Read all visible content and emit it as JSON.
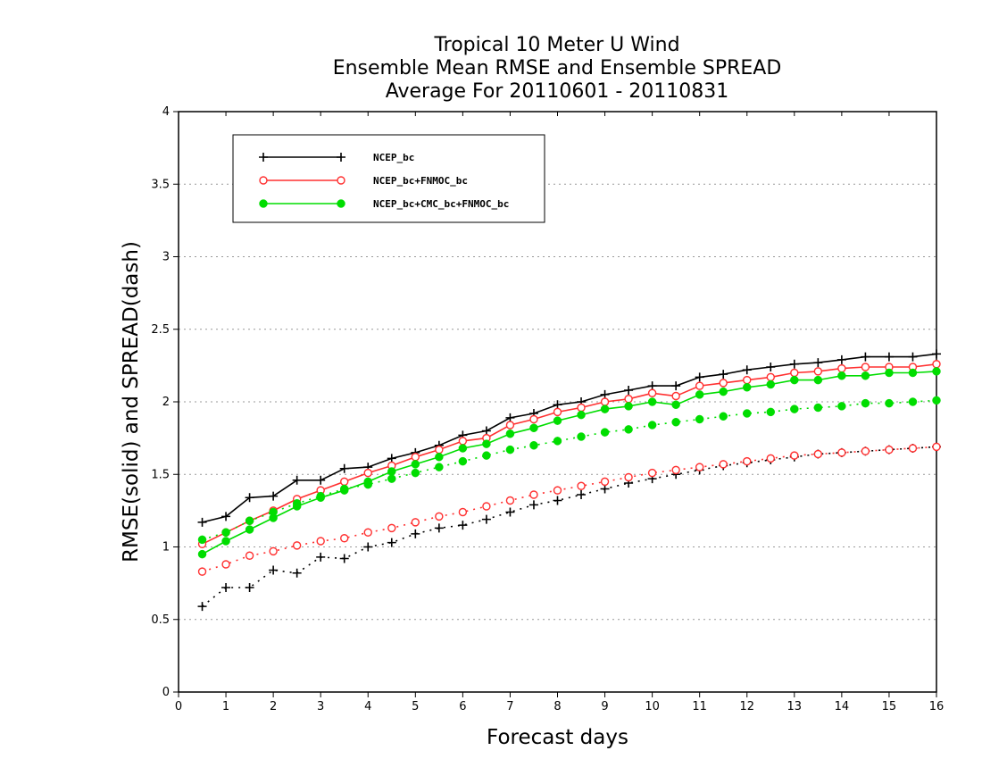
{
  "chart_data": {
    "type": "line",
    "title": [
      "Tropical 10 Meter U Wind",
      "Ensemble Mean RMSE and Ensemble SPREAD",
      "Average For 20110601 - 20110831"
    ],
    "xlabel": "Forecast days",
    "ylabel": "RMSE(solid) and SPREAD(dash)",
    "xlim": [
      0,
      16
    ],
    "ylim": [
      0,
      4
    ],
    "xticks": [
      0,
      1,
      2,
      3,
      4,
      5,
      6,
      7,
      8,
      9,
      10,
      11,
      12,
      13,
      14,
      15,
      16
    ],
    "yticks": [
      0,
      0.5,
      1,
      1.5,
      2,
      2.5,
      3,
      3.5,
      4
    ],
    "ytick_labels": [
      "0",
      "0.5",
      "1",
      "1.5",
      "2",
      "2.5",
      "3",
      "3.5",
      "4"
    ],
    "grid": "horizontal dotted",
    "legend_placement": "top-left",
    "x": [
      0.5,
      1,
      1.5,
      2,
      2.5,
      3,
      3.5,
      4,
      4.5,
      5,
      5.5,
      6,
      6.5,
      7,
      7.5,
      8,
      8.5,
      9,
      9.5,
      10,
      10.5,
      11,
      11.5,
      12,
      12.5,
      13,
      13.5,
      14,
      14.5,
      15,
      15.5,
      16
    ],
    "series": [
      {
        "name": "NCEP_bc",
        "color": "#000000",
        "marker": "plus",
        "rmse": [
          1.17,
          1.21,
          1.34,
          1.35,
          1.46,
          1.46,
          1.54,
          1.55,
          1.61,
          1.65,
          1.7,
          1.77,
          1.8,
          1.89,
          1.92,
          1.98,
          2.0,
          2.05,
          2.08,
          2.11,
          2.11,
          2.17,
          2.19,
          2.22,
          2.24,
          2.26,
          2.27,
          2.29,
          2.31,
          2.31,
          2.31,
          2.33
        ],
        "spread": [
          0.59,
          0.72,
          0.72,
          0.84,
          0.82,
          0.93,
          0.92,
          1.0,
          1.03,
          1.09,
          1.13,
          1.15,
          1.19,
          1.24,
          1.29,
          1.32,
          1.36,
          1.4,
          1.44,
          1.47,
          1.5,
          1.53,
          1.56,
          1.58,
          1.6,
          1.62,
          1.64,
          1.65,
          1.66,
          1.67,
          1.68,
          1.69
        ]
      },
      {
        "name": "NCEP_bc+FNMOC_bc",
        "color": "#ff3030",
        "marker": "open-circle",
        "rmse": [
          1.02,
          1.1,
          1.18,
          1.25,
          1.33,
          1.39,
          1.45,
          1.51,
          1.56,
          1.62,
          1.67,
          1.73,
          1.75,
          1.84,
          1.88,
          1.93,
          1.96,
          2.0,
          2.02,
          2.06,
          2.04,
          2.11,
          2.13,
          2.15,
          2.17,
          2.2,
          2.21,
          2.23,
          2.24,
          2.24,
          2.24,
          2.26
        ],
        "spread": [
          0.83,
          0.88,
          0.94,
          0.97,
          1.01,
          1.04,
          1.06,
          1.1,
          1.13,
          1.17,
          1.21,
          1.24,
          1.28,
          1.32,
          1.36,
          1.39,
          1.42,
          1.45,
          1.48,
          1.51,
          1.53,
          1.55,
          1.57,
          1.59,
          1.61,
          1.63,
          1.64,
          1.65,
          1.66,
          1.67,
          1.68,
          1.69
        ]
      },
      {
        "name": "NCEP_bc+CMC_bc+FNMOC_bc",
        "color": "#00dd00",
        "marker": "filled-circle",
        "rmse": [
          0.95,
          1.04,
          1.12,
          1.2,
          1.28,
          1.34,
          1.39,
          1.45,
          1.52,
          1.57,
          1.62,
          1.68,
          1.71,
          1.78,
          1.82,
          1.87,
          1.91,
          1.95,
          1.97,
          2.0,
          1.98,
          2.05,
          2.07,
          2.1,
          2.12,
          2.15,
          2.15,
          2.18,
          2.18,
          2.2,
          2.2,
          2.21
        ],
        "spread": [
          1.05,
          1.1,
          1.18,
          1.24,
          1.3,
          1.35,
          1.4,
          1.43,
          1.47,
          1.51,
          1.55,
          1.59,
          1.63,
          1.67,
          1.7,
          1.73,
          1.76,
          1.79,
          1.81,
          1.84,
          1.86,
          1.88,
          1.9,
          1.92,
          1.93,
          1.95,
          1.96,
          1.97,
          1.99,
          1.99,
          2.0,
          2.01
        ]
      }
    ]
  }
}
